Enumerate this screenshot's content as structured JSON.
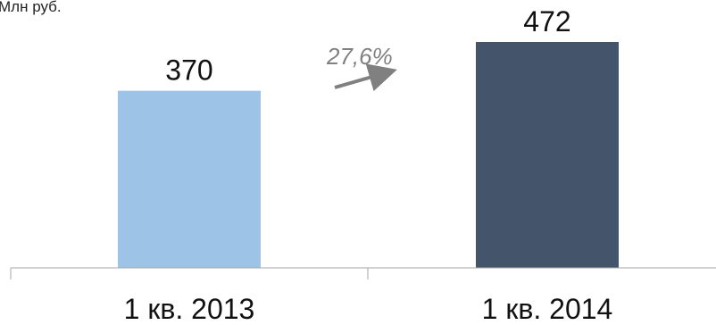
{
  "chart_data": {
    "type": "bar",
    "unit_label": "Млн руб.",
    "categories": [
      "1 кв. 2013",
      "1 кв. 2014"
    ],
    "values": [
      370,
      472
    ],
    "value_labels": [
      "370",
      "472"
    ],
    "ylim": [
      0,
      472
    ],
    "colors": [
      "#9dc3e6",
      "#44546a"
    ],
    "growth": {
      "label": "27,6%",
      "color": "#808080"
    },
    "axis_color": "#a6a6a6",
    "grid": false
  }
}
